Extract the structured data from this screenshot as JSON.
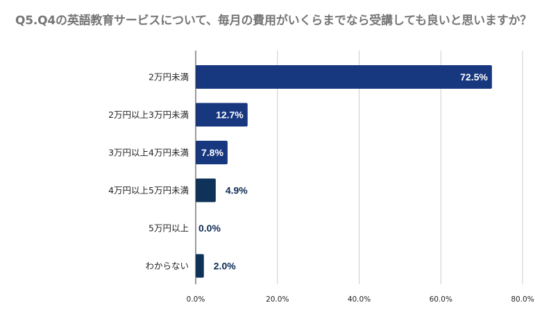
{
  "chart_data": {
    "type": "bar",
    "orientation": "horizontal",
    "title": "Q5.Q4の英語教育サービスについて、毎月の費用がいくらまでなら受講しても良いと思いますか？",
    "categories": [
      "2万円未満",
      "2万円以上3万円未満",
      "3万円以上4万円未満",
      "4万円以上5万円未満",
      "5万円以上",
      "わからない"
    ],
    "values": [
      72.5,
      12.7,
      7.8,
      4.9,
      0.0,
      2.0
    ],
    "value_labels": [
      "72.5%",
      "12.7%",
      "7.8%",
      "4.9%",
      "0.0%",
      "2.0%"
    ],
    "xlim": [
      0,
      80
    ],
    "x_ticks": [
      "0.0%",
      "20.0%",
      "40.0%",
      "60.0%",
      "80.0%"
    ],
    "grid": "vertical",
    "bar_colors": [
      "#17377f",
      "#17377f",
      "#17377f",
      "#0e3258",
      "#0e3258",
      "#0e3258"
    ],
    "label_color_outside": "#0b2a52",
    "label_color_inside": "#ffffff",
    "gridline_color": "#cccccc",
    "xlabel": "",
    "ylabel": ""
  }
}
